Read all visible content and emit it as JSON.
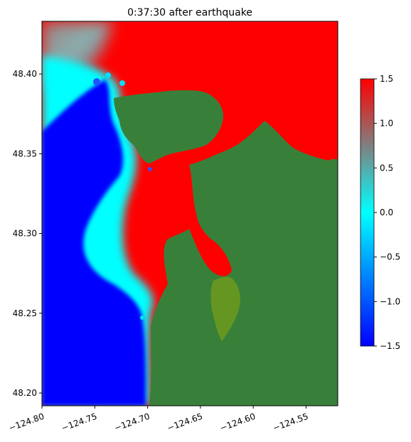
{
  "chart_data": {
    "type": "heatmap",
    "title": "0:37:30 after earthquake",
    "xlabel": "",
    "ylabel": "",
    "xlim": [
      -124.8,
      -124.52
    ],
    "ylim": [
      48.192,
      48.433
    ],
    "x_ticks": [
      -124.8,
      -124.75,
      -124.7,
      -124.65,
      -124.6,
      -124.55
    ],
    "x_tick_labels": [
      "−124.80",
      "−124.75",
      "−124.70",
      "−124.65",
      "−124.60",
      "−124.55"
    ],
    "y_ticks": [
      48.2,
      48.25,
      48.3,
      48.35,
      48.4
    ],
    "y_tick_labels": [
      "48.20",
      "48.25",
      "48.30",
      "48.35",
      "48.40"
    ],
    "colorbar": {
      "range": [
        -1.5,
        1.5
      ],
      "ticks": [
        -1.5,
        -1.0,
        -0.5,
        0.0,
        0.5,
        1.0,
        1.5
      ],
      "tick_labels": [
        "−1.5",
        "−1.0",
        "−0.5",
        "0.0",
        "0.5",
        "1.0",
        "1.5"
      ],
      "colors": [
        "#0000ff",
        "#00ffff",
        "#808080",
        "#ff0000"
      ]
    },
    "land_color": "#38803a",
    "wetland_color": "#6e9a1e",
    "grid": false
  }
}
